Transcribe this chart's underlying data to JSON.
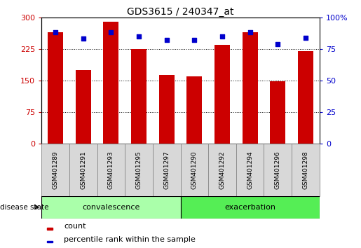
{
  "title": "GDS3615 / 240347_at",
  "samples": [
    "GSM401289",
    "GSM401291",
    "GSM401293",
    "GSM401295",
    "GSM401297",
    "GSM401290",
    "GSM401292",
    "GSM401294",
    "GSM401296",
    "GSM401298"
  ],
  "counts": [
    265,
    175,
    290,
    225,
    163,
    160,
    235,
    265,
    148,
    220
  ],
  "percentile": [
    88,
    83,
    88,
    85,
    82,
    82,
    85,
    88,
    79,
    84
  ],
  "bar_color": "#cc0000",
  "dot_color": "#0000cc",
  "left_ylim": [
    0,
    300
  ],
  "right_ylim": [
    0,
    100
  ],
  "left_yticks": [
    0,
    75,
    150,
    225,
    300
  ],
  "right_yticks": [
    0,
    25,
    50,
    75,
    100
  ],
  "left_ytick_labels": [
    "0",
    "75",
    "150",
    "225",
    "300"
  ],
  "right_ytick_labels": [
    "0",
    "25",
    "50",
    "75",
    "100%"
  ],
  "group_colors": [
    "#aaffaa",
    "#55ee55"
  ],
  "group_labels": [
    "convalescence",
    "exacerbation"
  ],
  "group_split": 5,
  "disease_state_label": "disease state",
  "legend_count_label": "count",
  "legend_percentile_label": "percentile rank within the sample",
  "grid_color": "black",
  "tick_color_left": "#cc0000",
  "tick_color_right": "#0000cc",
  "background_color": "#ffffff",
  "bar_width": 0.55,
  "sample_cell_color": "#d8d8d8",
  "n_samples": 10
}
